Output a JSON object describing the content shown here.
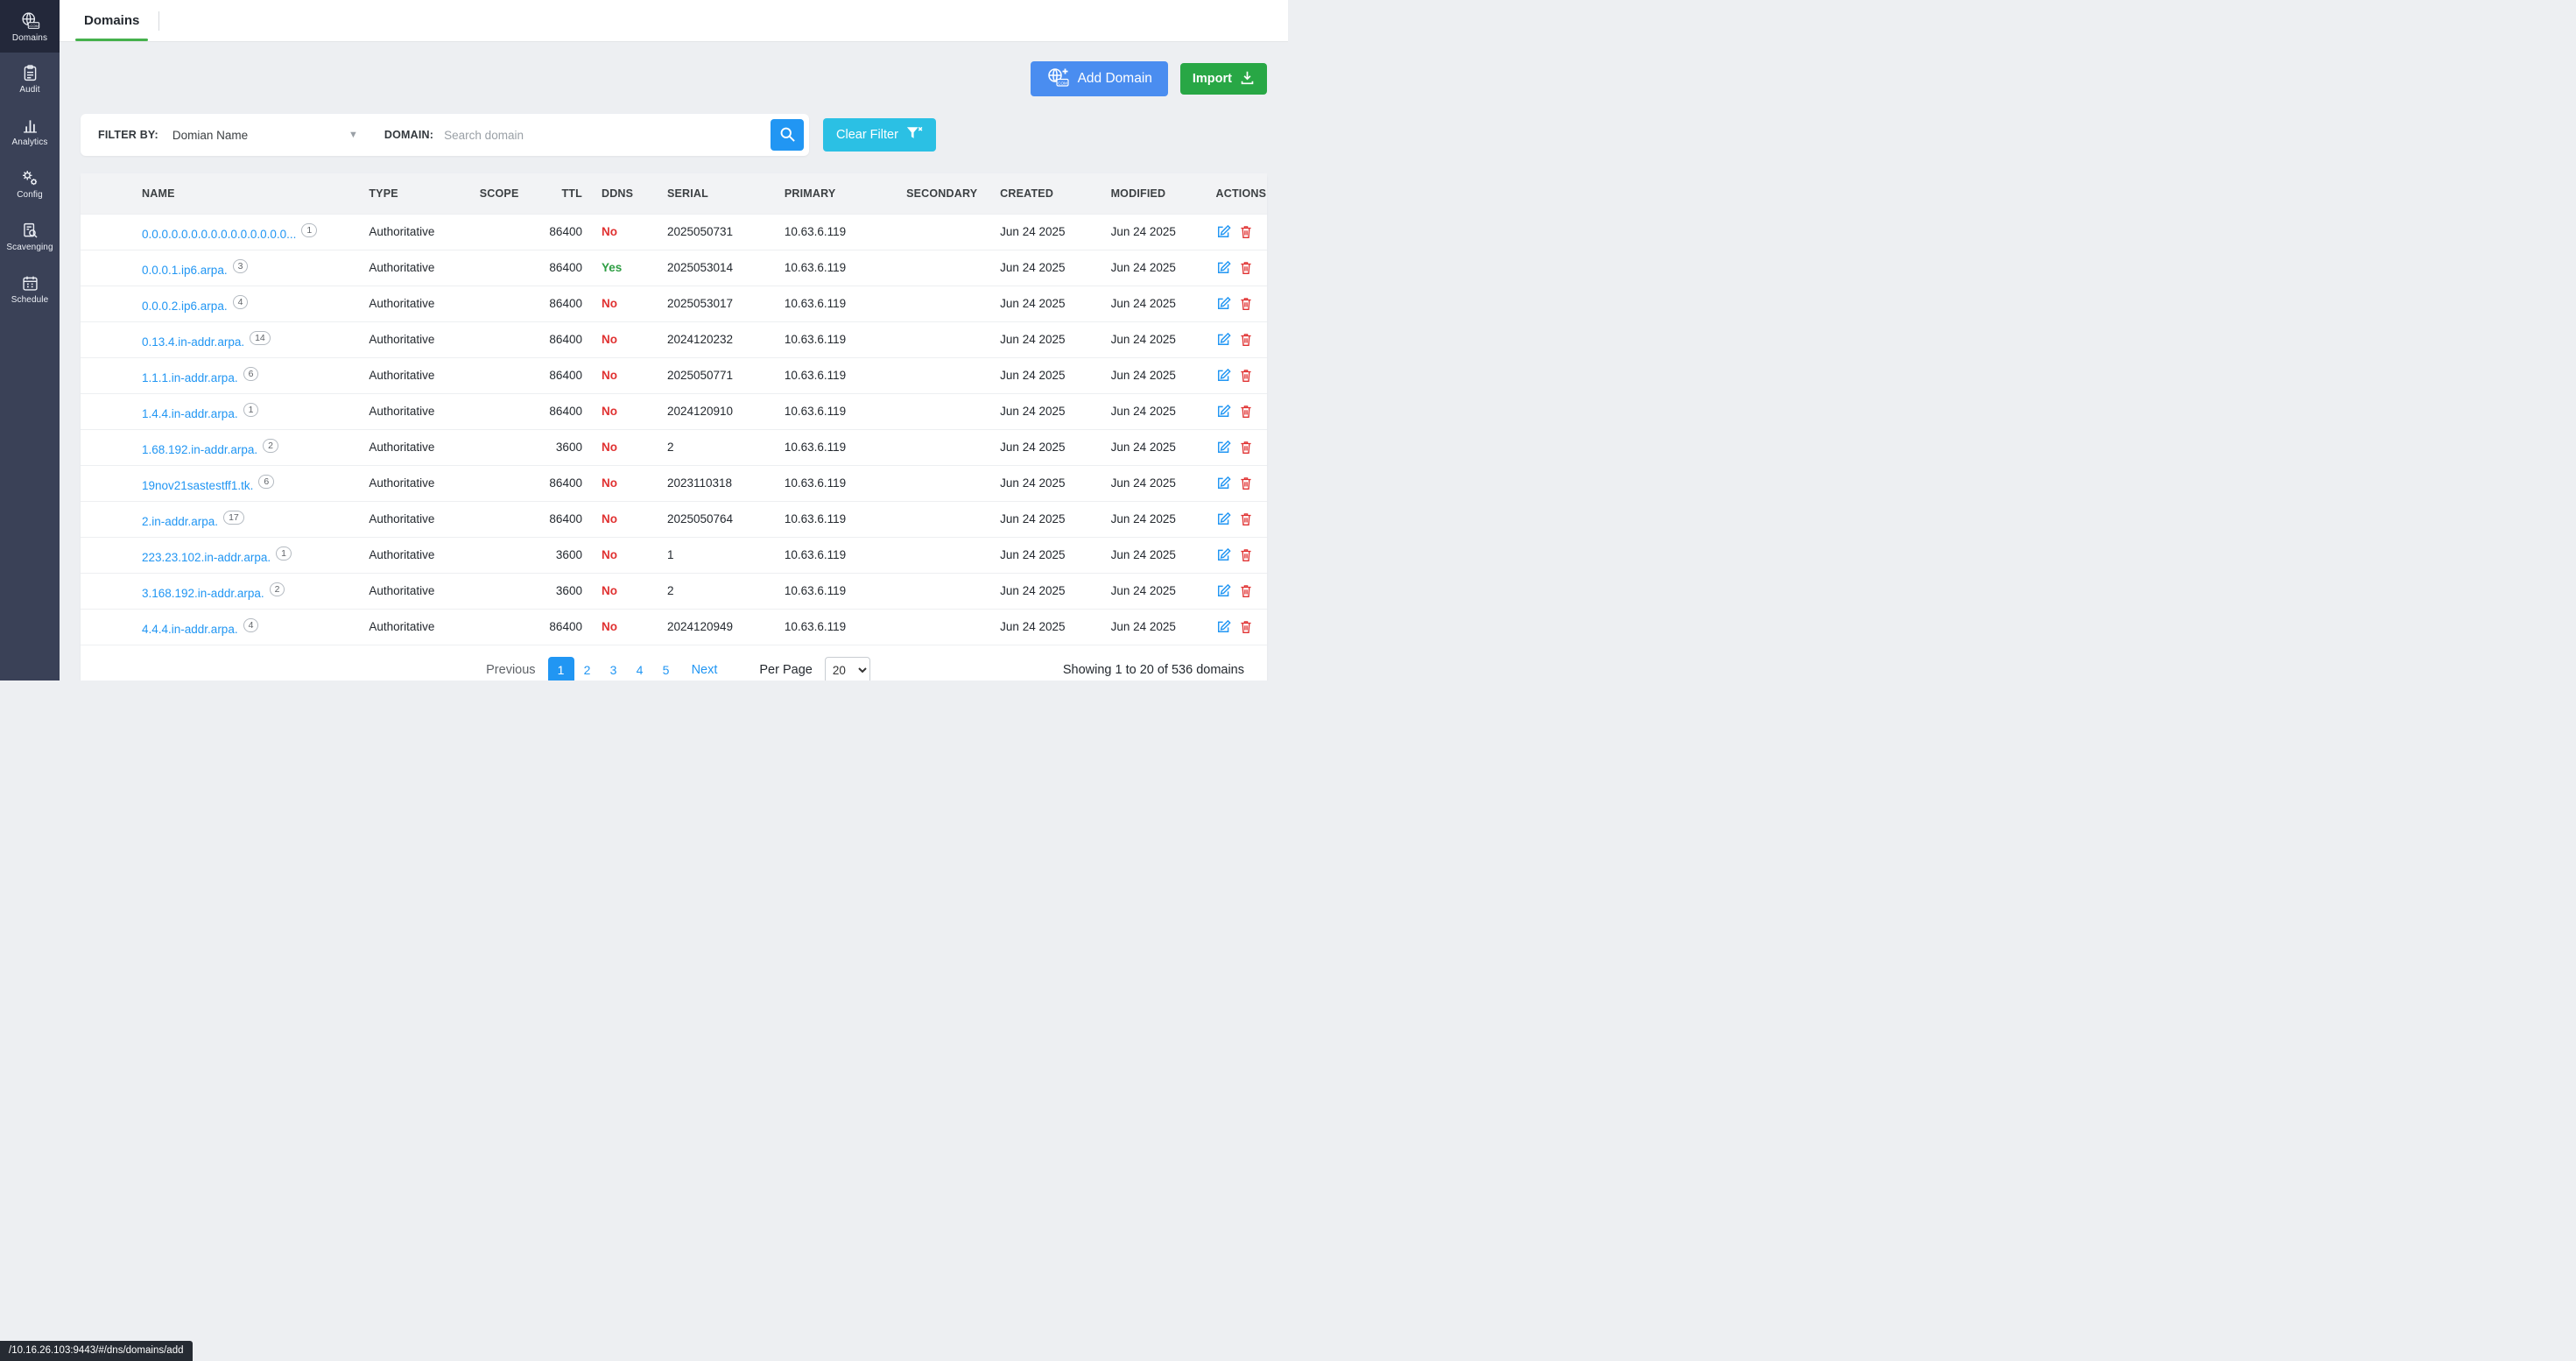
{
  "topbar": {
    "tab": "Domains"
  },
  "sidebar": {
    "items": [
      {
        "label": "Domains",
        "icon": "domains-globe-icon",
        "active": true
      },
      {
        "label": "Audit",
        "icon": "audit-clipboard-icon",
        "active": false
      },
      {
        "label": "Analytics",
        "icon": "analytics-chart-icon",
        "active": false
      },
      {
        "label": "Config",
        "icon": "config-gears-icon",
        "active": false
      },
      {
        "label": "Scavenging",
        "icon": "scavenging-search-icon",
        "active": false
      },
      {
        "label": "Schedule",
        "icon": "schedule-calendar-icon",
        "active": false
      }
    ]
  },
  "toolbar": {
    "add_domain_label": "Add Domain",
    "add_domain_icon": "globe-plus-icon",
    "import_label": "Import",
    "import_icon": "download-icon"
  },
  "filter": {
    "filter_by_label": "FILTER BY:",
    "filter_by_value": "Domian Name",
    "domain_label": "DOMAIN:",
    "search_placeholder": "Search domain",
    "search_icon": "search-icon",
    "clear_filter_label": "Clear Filter",
    "clear_filter_icon": "funnel-x-icon"
  },
  "table": {
    "headers": [
      "NAME",
      "TYPE",
      "SCOPE",
      "TTL",
      "DDNS",
      "SERIAL",
      "PRIMARY",
      "SECONDARY",
      "CREATED",
      "MODIFIED",
      "ACTIONS"
    ],
    "action_icons": {
      "edit": "edit-icon",
      "delete": "trash-icon"
    },
    "rows": [
      {
        "name": "0.0.0.0.0.0.0.0.0.0.0.0.0.0.0...",
        "badge": "1",
        "type": "Authoritative",
        "scope": "",
        "ttl": "86400",
        "ddns": "No",
        "serial": "2025050731",
        "primary": "10.63.6.119",
        "secondary": "",
        "created": "Jun 24 2025",
        "modified": "Jun 24 2025"
      },
      {
        "name": "0.0.0.1.ip6.arpa.",
        "badge": "3",
        "type": "Authoritative",
        "scope": "",
        "ttl": "86400",
        "ddns": "Yes",
        "serial": "2025053014",
        "primary": "10.63.6.119",
        "secondary": "",
        "created": "Jun 24 2025",
        "modified": "Jun 24 2025"
      },
      {
        "name": "0.0.0.2.ip6.arpa.",
        "badge": "4",
        "type": "Authoritative",
        "scope": "",
        "ttl": "86400",
        "ddns": "No",
        "serial": "2025053017",
        "primary": "10.63.6.119",
        "secondary": "",
        "created": "Jun 24 2025",
        "modified": "Jun 24 2025"
      },
      {
        "name": "0.13.4.in-addr.arpa.",
        "badge": "14",
        "type": "Authoritative",
        "scope": "",
        "ttl": "86400",
        "ddns": "No",
        "serial": "2024120232",
        "primary": "10.63.6.119",
        "secondary": "",
        "created": "Jun 24 2025",
        "modified": "Jun 24 2025"
      },
      {
        "name": "1.1.1.in-addr.arpa.",
        "badge": "6",
        "type": "Authoritative",
        "scope": "",
        "ttl": "86400",
        "ddns": "No",
        "serial": "2025050771",
        "primary": "10.63.6.119",
        "secondary": "",
        "created": "Jun 24 2025",
        "modified": "Jun 24 2025"
      },
      {
        "name": "1.4.4.in-addr.arpa.",
        "badge": "1",
        "type": "Authoritative",
        "scope": "",
        "ttl": "86400",
        "ddns": "No",
        "serial": "2024120910",
        "primary": "10.63.6.119",
        "secondary": "",
        "created": "Jun 24 2025",
        "modified": "Jun 24 2025"
      },
      {
        "name": "1.68.192.in-addr.arpa.",
        "badge": "2",
        "type": "Authoritative",
        "scope": "",
        "ttl": "3600",
        "ddns": "No",
        "serial": "2",
        "primary": "10.63.6.119",
        "secondary": "",
        "created": "Jun 24 2025",
        "modified": "Jun 24 2025"
      },
      {
        "name": "19nov21sastestff1.tk.",
        "badge": "6",
        "type": "Authoritative",
        "scope": "",
        "ttl": "86400",
        "ddns": "No",
        "serial": "2023110318",
        "primary": "10.63.6.119",
        "secondary": "",
        "created": "Jun 24 2025",
        "modified": "Jun 24 2025"
      },
      {
        "name": "2.in-addr.arpa.",
        "badge": "17",
        "type": "Authoritative",
        "scope": "",
        "ttl": "86400",
        "ddns": "No",
        "serial": "2025050764",
        "primary": "10.63.6.119",
        "secondary": "",
        "created": "Jun 24 2025",
        "modified": "Jun 24 2025"
      },
      {
        "name": "223.23.102.in-addr.arpa.",
        "badge": "1",
        "type": "Authoritative",
        "scope": "",
        "ttl": "3600",
        "ddns": "No",
        "serial": "1",
        "primary": "10.63.6.119",
        "secondary": "",
        "created": "Jun 24 2025",
        "modified": "Jun 24 2025"
      },
      {
        "name": "3.168.192.in-addr.arpa.",
        "badge": "2",
        "type": "Authoritative",
        "scope": "",
        "ttl": "3600",
        "ddns": "No",
        "serial": "2",
        "primary": "10.63.6.119",
        "secondary": "",
        "created": "Jun 24 2025",
        "modified": "Jun 24 2025"
      },
      {
        "name": "4.4.4.in-addr.arpa.",
        "badge": "4",
        "type": "Authoritative",
        "scope": "",
        "ttl": "86400",
        "ddns": "No",
        "serial": "2024120949",
        "primary": "10.63.6.119",
        "secondary": "",
        "created": "Jun 24 2025",
        "modified": "Jun 24 2025"
      }
    ]
  },
  "pagination": {
    "previous_label": "Previous",
    "pages": [
      "1",
      "2",
      "3",
      "4",
      "5"
    ],
    "active_page": "1",
    "next_label": "Next",
    "per_page_label": "Per Page",
    "per_page_value": "20",
    "summary": "Showing 1 to 20 of 536 domains"
  },
  "statusbar": {
    "url": "/10.16.26.103:9443/#/dns/domains/add"
  },
  "colors": {
    "accent_blue": "#2196f3",
    "button_blue": "#4a8df0",
    "button_green": "#28a745",
    "clear_cyan": "#2bc0e4",
    "tab_underline_green": "#45b14c",
    "ddns_no_red": "#e03131",
    "ddns_yes_green": "#2f9e44",
    "sidebar_bg": "#3a4157",
    "sidebar_active_bg": "#23283a"
  }
}
